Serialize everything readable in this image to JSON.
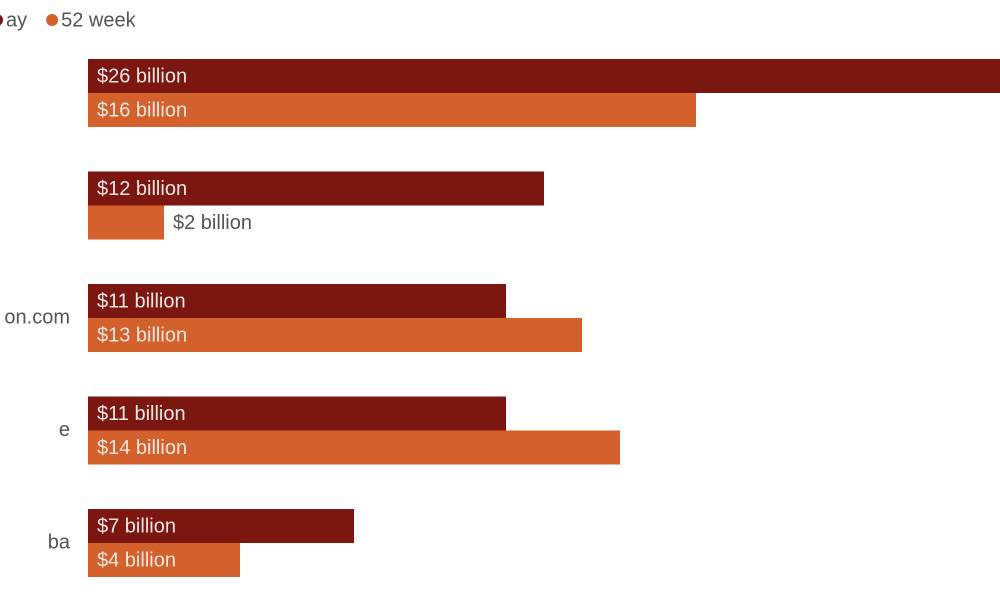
{
  "chart_data": {
    "type": "bar",
    "orientation": "horizontal",
    "categories": [
      null,
      null,
      "on.com",
      "e",
      "ba"
    ],
    "series": [
      {
        "name": "ay",
        "color": "#7b1610",
        "values": [
          26,
          12,
          11,
          11,
          7
        ],
        "value_labels": [
          "$26 billion",
          "$12 billion",
          "$11 billion",
          "$11 billion",
          "$7 billion"
        ]
      },
      {
        "name": "52 week",
        "color": "#d4602b",
        "values": [
          16,
          2,
          13,
          14,
          4
        ],
        "value_labels": [
          "$16 billion",
          "$2 billion",
          "$13 billion",
          "$14 billion",
          "$4 billion"
        ]
      }
    ],
    "xlim": [
      0,
      24
    ]
  }
}
